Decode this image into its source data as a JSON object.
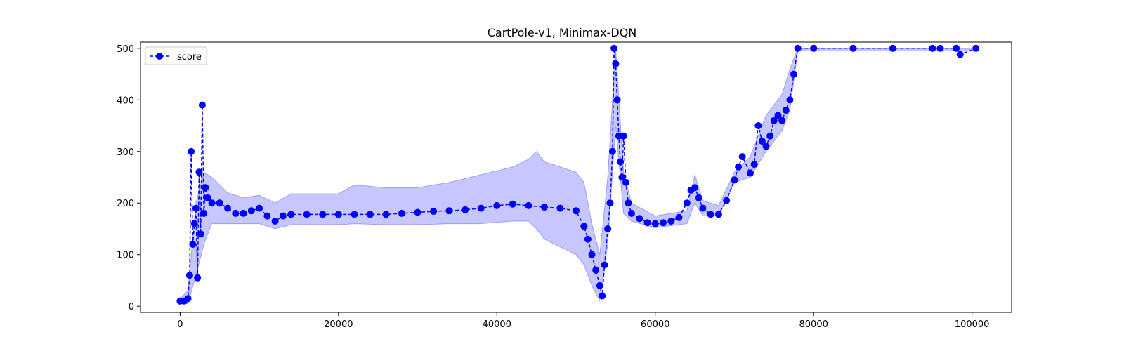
{
  "chart_data": {
    "type": "line",
    "title": "CartPole-v1, Minimax-DQN",
    "xlabel": "",
    "ylabel": "",
    "xlim": [
      -5000,
      105000
    ],
    "ylim": [
      -12,
      512
    ],
    "x_ticks": [
      0,
      20000,
      40000,
      60000,
      80000,
      100000
    ],
    "x_tick_labels": [
      "0",
      "20000",
      "40000",
      "60000",
      "80000",
      "100000"
    ],
    "y_ticks": [
      0,
      100,
      200,
      300,
      400,
      500
    ],
    "y_tick_labels": [
      "0",
      "100",
      "200",
      "300",
      "400",
      "500"
    ],
    "grid": false,
    "legend": {
      "position": "top-left",
      "entries": [
        "score"
      ]
    },
    "colors": {
      "series": "#0000ff",
      "band": "#0000ff",
      "axes": "#000000"
    },
    "series": [
      {
        "name": "score",
        "marker": "circle",
        "linestyle": "dashed",
        "x": [
          0,
          500,
          1000,
          1200,
          1400,
          1600,
          1800,
          2000,
          2200,
          2400,
          2600,
          2800,
          3000,
          3200,
          3500,
          4000,
          5000,
          6000,
          7000,
          8000,
          9000,
          10000,
          11000,
          12000,
          13000,
          14000,
          16000,
          18000,
          20000,
          22000,
          24000,
          26000,
          28000,
          30000,
          32000,
          34000,
          36000,
          38000,
          40000,
          42000,
          44000,
          46000,
          48000,
          50000,
          51000,
          51500,
          52000,
          52500,
          53000,
          53300,
          53600,
          54000,
          54300,
          54600,
          54800,
          55000,
          55200,
          55400,
          55600,
          55800,
          56000,
          56300,
          56600,
          57000,
          58000,
          59000,
          60000,
          61000,
          62000,
          63000,
          64000,
          64500,
          65000,
          65500,
          66000,
          67000,
          68000,
          69000,
          70000,
          70500,
          71000,
          72000,
          72500,
          73000,
          73500,
          74000,
          74500,
          75000,
          75500,
          76000,
          76500,
          77000,
          77500,
          78000,
          80000,
          85000,
          90000,
          95000,
          96000,
          98000,
          98500,
          100500
        ],
        "values": [
          10,
          10,
          15,
          60,
          300,
          120,
          160,
          190,
          55,
          260,
          140,
          390,
          180,
          230,
          210,
          200,
          200,
          190,
          180,
          180,
          185,
          190,
          175,
          165,
          175,
          178,
          178,
          178,
          178,
          178,
          178,
          178,
          180,
          182,
          184,
          185,
          187,
          190,
          195,
          198,
          195,
          192,
          190,
          185,
          155,
          130,
          100,
          70,
          40,
          20,
          80,
          150,
          200,
          300,
          500,
          470,
          400,
          330,
          280,
          250,
          330,
          240,
          200,
          180,
          170,
          162,
          160,
          162,
          165,
          172,
          200,
          225,
          230,
          210,
          190,
          178,
          178,
          205,
          245,
          270,
          290,
          258,
          275,
          350,
          320,
          310,
          330,
          360,
          370,
          360,
          380,
          400,
          450,
          500,
          500,
          500,
          500,
          500,
          500,
          500,
          488,
          500
        ]
      },
      {
        "name": "",
        "type": "band",
        "x": [
          0,
          1000,
          2000,
          3000,
          4000,
          6000,
          8000,
          10000,
          12000,
          14000,
          16000,
          20000,
          22000,
          26000,
          30000,
          34000,
          38000,
          42000,
          44000,
          45000,
          46000,
          48000,
          50000,
          51000,
          52000,
          53000,
          54000,
          55000,
          56000,
          57000,
          60000,
          64000,
          65000,
          66000,
          68000,
          70000,
          72000,
          74000,
          76000,
          77000,
          78000,
          100500
        ],
        "lower": [
          5,
          5,
          60,
          120,
          160,
          160,
          160,
          160,
          150,
          158,
          158,
          158,
          160,
          158,
          158,
          160,
          160,
          165,
          165,
          150,
          130,
          115,
          100,
          80,
          40,
          10,
          120,
          350,
          180,
          165,
          152,
          160,
          200,
          175,
          175,
          240,
          250,
          300,
          340,
          380,
          495,
          495
        ],
        "upper": [
          15,
          30,
          200,
          260,
          250,
          220,
          210,
          215,
          200,
          218,
          218,
          218,
          235,
          230,
          230,
          240,
          255,
          270,
          285,
          300,
          280,
          270,
          260,
          240,
          160,
          100,
          250,
          500,
          260,
          200,
          175,
          185,
          255,
          205,
          195,
          260,
          290,
          370,
          410,
          460,
          500,
          500
        ]
      }
    ]
  }
}
